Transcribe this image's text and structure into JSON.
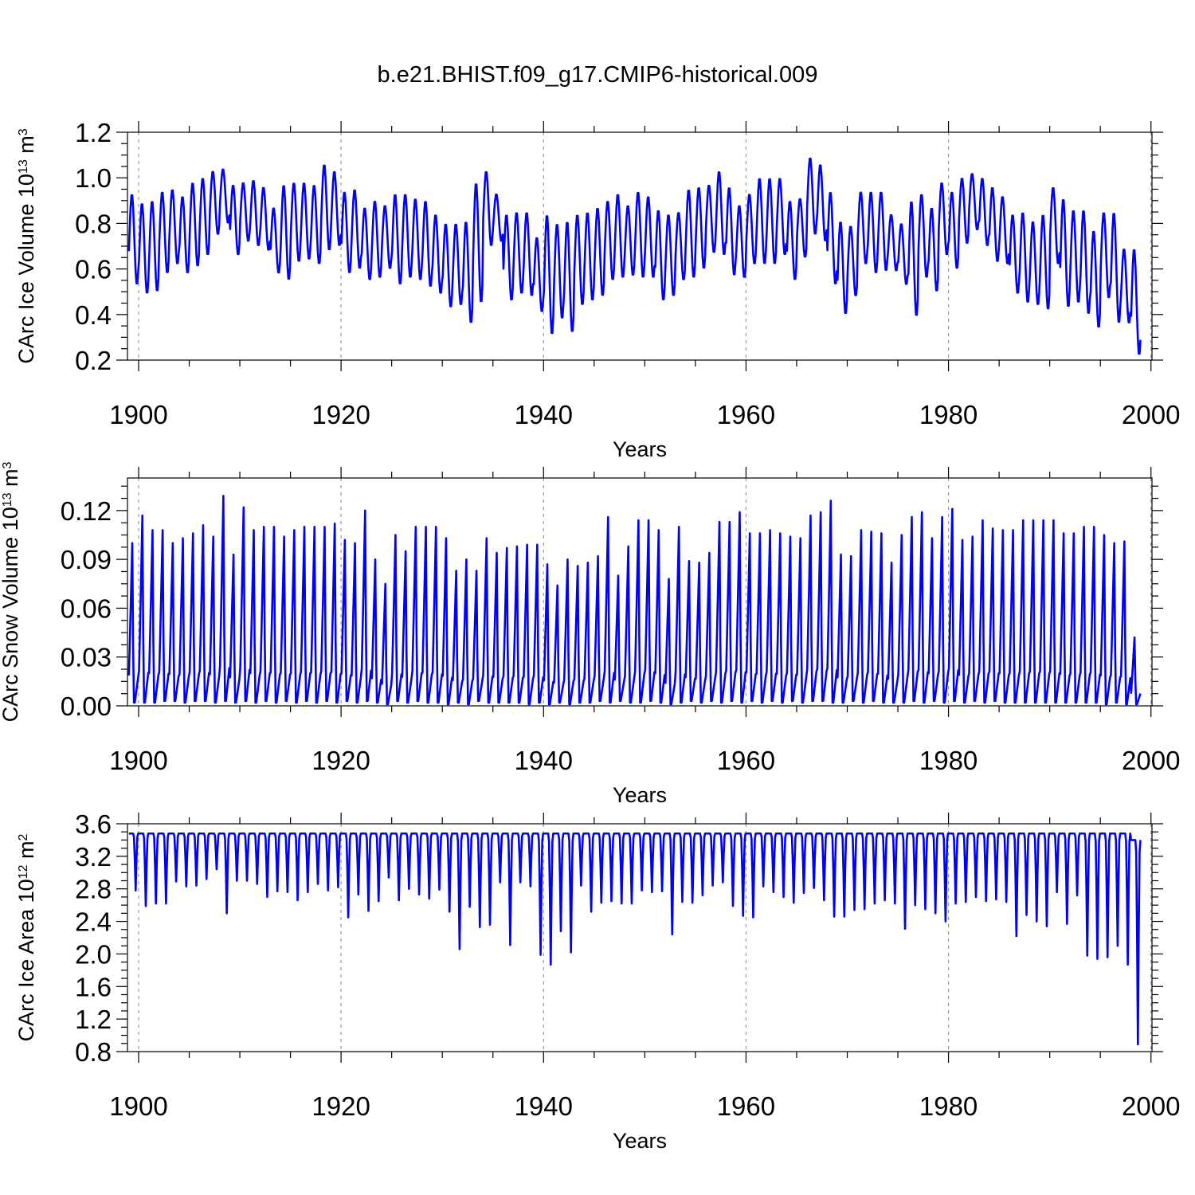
{
  "title": "b.e21.BHIST.f09_g17.CMIP6-historical.009",
  "colors": {
    "series": "#0000ff",
    "axes": "#000000",
    "grid": "#999999"
  },
  "chart_data": [
    {
      "type": "line",
      "ylabel_main": "CArc Ice Volume 10",
      "ylabel_exp": "13",
      "ylabel_unit": " m",
      "ylabel_unit_exp": "3",
      "xlabel": "Years",
      "xlim": [
        1898.9,
        2000.1
      ],
      "ylim": [
        0.2,
        1.2
      ],
      "yticks": [
        0.2,
        0.4,
        0.6,
        0.8,
        1.0,
        1.2
      ],
      "ytick_labels": [
        "0.2",
        "0.4",
        "0.6",
        "0.8",
        "1.0",
        "1.2"
      ],
      "xticks": [
        1900,
        1920,
        1940,
        1960,
        1980,
        2000
      ],
      "xtick_labels": [
        "1900",
        "1920",
        "1940",
        "1960",
        "1980",
        "2000"
      ],
      "grid": "vertical dashed at major x ticks",
      "series": [
        {
          "name": "CArc Ice Volume",
          "start_year": 1899,
          "step": "monthly",
          "annual_max": [
            0.93,
            0.89,
            0.9,
            0.94,
            0.95,
            0.92,
            0.98,
            1.0,
            1.03,
            1.04,
            0.97,
            0.98,
            0.99,
            0.96,
            0.87,
            0.97,
            0.98,
            0.98,
            0.97,
            1.06,
            1.03,
            0.94,
            0.95,
            0.87,
            0.9,
            0.88,
            0.93,
            0.93,
            0.91,
            0.9,
            0.84,
            0.8,
            0.8,
            0.81,
            0.98,
            1.03,
            0.93,
            0.84,
            0.85,
            0.85,
            0.74,
            0.84,
            0.8,
            0.81,
            0.84,
            0.85,
            0.87,
            0.9,
            0.93,
            0.88,
            0.94,
            0.92,
            0.86,
            0.84,
            0.85,
            0.95,
            0.96,
            0.97,
            1.03,
            0.96,
            0.88,
            0.93,
            1.0,
            1.0,
            1.0,
            0.9,
            0.91,
            1.09,
            1.06,
            0.94,
            0.81,
            0.79,
            0.94,
            0.94,
            0.94,
            0.84,
            0.8,
            0.9,
            0.93,
            0.87,
            0.98,
            0.94,
            1.0,
            1.02,
            1.0,
            0.96,
            0.92,
            0.84,
            0.85,
            0.81,
            0.84,
            0.96,
            0.91,
            0.86,
            0.86,
            0.77,
            0.85,
            0.85,
            0.69,
            0.69
          ],
          "annual_min": [
            0.53,
            0.49,
            0.5,
            0.58,
            0.62,
            0.58,
            0.61,
            0.66,
            0.75,
            0.8,
            0.66,
            0.72,
            0.7,
            0.68,
            0.58,
            0.55,
            0.63,
            0.64,
            0.62,
            0.68,
            0.7,
            0.58,
            0.6,
            0.55,
            0.56,
            0.6,
            0.53,
            0.56,
            0.55,
            0.52,
            0.49,
            0.43,
            0.44,
            0.36,
            0.45,
            0.7,
            0.72,
            0.46,
            0.49,
            0.48,
            0.41,
            0.31,
            0.38,
            0.32,
            0.44,
            0.46,
            0.48,
            0.55,
            0.56,
            0.57,
            0.56,
            0.56,
            0.46,
            0.48,
            0.55,
            0.56,
            0.6,
            0.67,
            0.66,
            0.57,
            0.56,
            0.62,
            0.62,
            0.62,
            0.66,
            0.55,
            0.65,
            0.75,
            0.72,
            0.53,
            0.4,
            0.48,
            0.62,
            0.58,
            0.59,
            0.59,
            0.53,
            0.39,
            0.56,
            0.5,
            0.66,
            0.6,
            0.71,
            0.77,
            0.7,
            0.63,
            0.62,
            0.49,
            0.45,
            0.44,
            0.42,
            0.62,
            0.43,
            0.45,
            0.4,
            0.34,
            0.47,
            0.36,
            0.36,
            0.22
          ]
        }
      ]
    },
    {
      "type": "line",
      "ylabel_main": "CArc Snow Volume 10",
      "ylabel_exp": "13",
      "ylabel_unit": " m",
      "ylabel_unit_exp": "3",
      "xlabel": "Years",
      "xlim": [
        1898.9,
        2000.1
      ],
      "ylim": [
        0.0,
        0.14
      ],
      "yticks": [
        0.0,
        0.03,
        0.06,
        0.09,
        0.12
      ],
      "ytick_labels": [
        "0.00",
        "0.03",
        "0.06",
        "0.09",
        "0.12"
      ],
      "xticks": [
        1900,
        1920,
        1940,
        1960,
        1980,
        2000
      ],
      "xtick_labels": [
        "1900",
        "1920",
        "1940",
        "1960",
        "1980",
        "2000"
      ],
      "grid": "vertical dashed at major x ticks",
      "series": [
        {
          "name": "CArc Snow Volume",
          "start_year": 1899,
          "step": "monthly",
          "annual_max": [
            0.1,
            0.117,
            0.108,
            0.108,
            0.1,
            0.103,
            0.106,
            0.111,
            0.104,
            0.129,
            0.093,
            0.122,
            0.108,
            0.11,
            0.11,
            0.104,
            0.108,
            0.11,
            0.11,
            0.11,
            0.112,
            0.102,
            0.1,
            0.12,
            0.09,
            0.075,
            0.105,
            0.095,
            0.11,
            0.11,
            0.11,
            0.103,
            0.083,
            0.09,
            0.083,
            0.103,
            0.094,
            0.097,
            0.098,
            0.099,
            0.099,
            0.087,
            0.074,
            0.09,
            0.086,
            0.088,
            0.092,
            0.116,
            0.08,
            0.098,
            0.114,
            0.114,
            0.108,
            0.078,
            0.11,
            0.089,
            0.088,
            0.094,
            0.113,
            0.113,
            0.119,
            0.106,
            0.106,
            0.108,
            0.106,
            0.104,
            0.103,
            0.117,
            0.119,
            0.126,
            0.093,
            0.092,
            0.108,
            0.107,
            0.106,
            0.088,
            0.105,
            0.116,
            0.119,
            0.103,
            0.116,
            0.121,
            0.102,
            0.104,
            0.114,
            0.109,
            0.108,
            0.108,
            0.114,
            0.114,
            0.114,
            0.114,
            0.106,
            0.106,
            0.11,
            0.11,
            0.105,
            0.1,
            0.101,
            0.042
          ],
          "annual_min": [
            0.002,
            0.002,
            0.002,
            0.003,
            0.003,
            0.002,
            0.003,
            0.003,
            0.002,
            0.003,
            0.002,
            0.003,
            0.002,
            0.003,
            0.002,
            0.003,
            0.002,
            0.003,
            0.002,
            0.003,
            0.002,
            0.003,
            0.002,
            0.003,
            0.002,
            0.001,
            0.003,
            0.002,
            0.003,
            0.002,
            0.002,
            0.001,
            0.002,
            0.001,
            0.003,
            0.002,
            0.002,
            0.002,
            0.002,
            0.001,
            0.002,
            0.001,
            0.002,
            0.001,
            0.002,
            0.002,
            0.003,
            0.002,
            0.003,
            0.002,
            0.002,
            0.003,
            0.002,
            0.001,
            0.002,
            0.003,
            0.002,
            0.003,
            0.002,
            0.003,
            0.002,
            0.003,
            0.002,
            0.003,
            0.002,
            0.003,
            0.002,
            0.003,
            0.003,
            0.002,
            0.002,
            0.003,
            0.002,
            0.003,
            0.002,
            0.002,
            0.002,
            0.003,
            0.002,
            0.003,
            0.002,
            0.003,
            0.002,
            0.003,
            0.002,
            0.003,
            0.002,
            0.002,
            0.002,
            0.002,
            0.002,
            0.002,
            0.002,
            0.002,
            0.002,
            0.002,
            0.001,
            0.002,
            0.001,
            0.001
          ]
        }
      ]
    },
    {
      "type": "line",
      "ylabel_main": "CArc Ice Area 10",
      "ylabel_exp": "12",
      "ylabel_unit": " m",
      "ylabel_unit_exp": "2",
      "xlabel": "Years",
      "xlim": [
        1898.9,
        2000.1
      ],
      "ylim": [
        0.8,
        3.6
      ],
      "yticks": [
        0.8,
        1.2,
        1.6,
        2.0,
        2.4,
        2.8,
        3.2,
        3.6
      ],
      "ytick_labels": [
        "0.8",
        "1.2",
        "1.6",
        "2.0",
        "2.4",
        "2.8",
        "3.2",
        "3.6"
      ],
      "xticks": [
        1900,
        1920,
        1940,
        1960,
        1980,
        2000
      ],
      "xtick_labels": [
        "1900",
        "1920",
        "1940",
        "1960",
        "1980",
        "2000"
      ],
      "grid": "vertical dashed at major x ticks",
      "series": [
        {
          "name": "CArc Ice Area",
          "start_year": 1899,
          "step": "monthly",
          "annual_max": [
            3.48,
            3.48,
            3.48,
            3.48,
            3.48,
            3.48,
            3.48,
            3.48,
            3.48,
            3.48,
            3.48,
            3.48,
            3.48,
            3.48,
            3.48,
            3.48,
            3.48,
            3.48,
            3.48,
            3.48,
            3.48,
            3.48,
            3.48,
            3.48,
            3.48,
            3.48,
            3.48,
            3.48,
            3.48,
            3.48,
            3.48,
            3.48,
            3.48,
            3.48,
            3.48,
            3.48,
            3.48,
            3.48,
            3.48,
            3.48,
            3.48,
            3.48,
            3.48,
            3.48,
            3.48,
            3.48,
            3.48,
            3.48,
            3.48,
            3.48,
            3.48,
            3.48,
            3.48,
            3.48,
            3.48,
            3.48,
            3.48,
            3.48,
            3.48,
            3.48,
            3.48,
            3.48,
            3.48,
            3.48,
            3.48,
            3.48,
            3.48,
            3.48,
            3.48,
            3.48,
            3.48,
            3.48,
            3.48,
            3.48,
            3.48,
            3.48,
            3.48,
            3.48,
            3.48,
            3.48,
            3.48,
            3.48,
            3.48,
            3.48,
            3.48,
            3.48,
            3.48,
            3.48,
            3.48,
            3.48,
            3.48,
            3.48,
            3.48,
            3.48,
            3.48,
            3.48,
            3.48,
            3.48,
            3.48,
            3.4
          ],
          "annual_min": [
            2.78,
            2.59,
            2.62,
            2.62,
            2.89,
            2.83,
            2.84,
            2.92,
            3.04,
            2.5,
            2.9,
            2.9,
            2.86,
            2.7,
            2.77,
            2.76,
            2.66,
            2.76,
            2.86,
            2.78,
            2.82,
            2.45,
            2.73,
            2.53,
            2.65,
            2.94,
            2.66,
            2.8,
            2.73,
            2.68,
            2.79,
            2.52,
            2.06,
            2.58,
            2.33,
            2.36,
            2.88,
            2.11,
            2.88,
            2.83,
            1.99,
            1.87,
            2.28,
            2.02,
            2.84,
            2.52,
            2.63,
            2.65,
            2.62,
            2.62,
            2.78,
            2.76,
            2.77,
            2.24,
            2.64,
            2.63,
            2.72,
            2.84,
            2.88,
            2.59,
            2.47,
            2.45,
            2.83,
            2.76,
            2.7,
            2.63,
            2.75,
            2.81,
            2.66,
            2.46,
            2.46,
            2.54,
            2.55,
            2.62,
            2.66,
            2.62,
            2.31,
            2.6,
            2.55,
            2.5,
            2.4,
            2.62,
            2.64,
            2.7,
            2.65,
            2.67,
            2.64,
            2.22,
            2.48,
            2.4,
            2.34,
            2.76,
            2.37,
            2.72,
            1.98,
            1.94,
            1.96,
            2.1,
            1.87,
            0.89
          ]
        }
      ]
    }
  ]
}
